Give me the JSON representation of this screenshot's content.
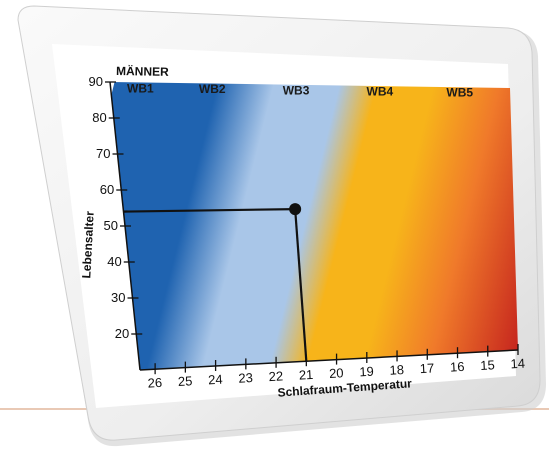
{
  "chart_data": {
    "type": "heatmap",
    "title": "MÄNNER",
    "xlabel": "Schlafraum-Temperatur",
    "ylabel": "Lebensalter",
    "x_ticks": [
      26,
      25,
      24,
      23,
      22,
      21,
      20,
      19,
      18,
      17,
      16,
      15,
      14
    ],
    "y_ticks": [
      20,
      30,
      40,
      50,
      60,
      70,
      80,
      90
    ],
    "xlim": [
      26.5,
      14
    ],
    "ylim": [
      10,
      90
    ],
    "bands": [
      {
        "label": "WB1",
        "color": "#1f63b0"
      },
      {
        "label": "WB2",
        "color": "#a9c6e8"
      },
      {
        "label": "WB3",
        "color": "#f7b41a"
      },
      {
        "label": "WB4",
        "color": "#f07a2a"
      },
      {
        "label": "WB5",
        "color": "#c6261e"
      }
    ],
    "marker": {
      "x": 21,
      "y": 54
    }
  }
}
